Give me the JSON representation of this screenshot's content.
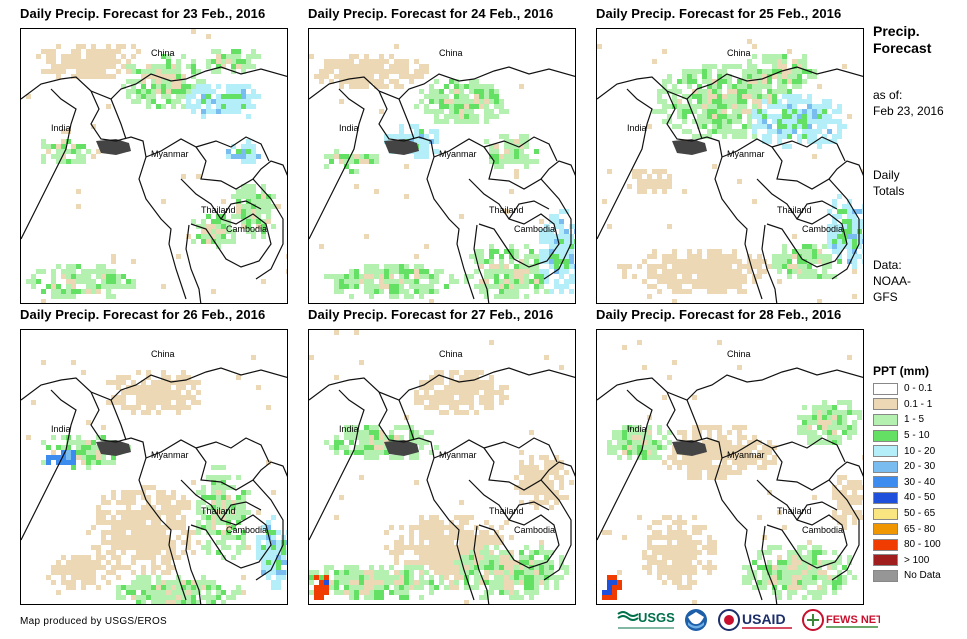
{
  "panels": [
    {
      "title": "Daily Precip. Forecast for 23 Feb., 2016"
    },
    {
      "title": "Daily Precip. Forecast for 24 Feb., 2016"
    },
    {
      "title": "Daily Precip. Forecast for 25 Feb., 2016"
    },
    {
      "title": "Daily Precip. Forecast for 26 Feb., 2016"
    },
    {
      "title": "Daily Precip. Forecast for 27 Feb., 2016"
    },
    {
      "title": "Daily Precip. Forecast for 28 Feb., 2016"
    }
  ],
  "map_labels": {
    "china": "China",
    "india": "India",
    "myanmar": "Myanmar",
    "thailand": "Thailand",
    "cambodia": "Cambodia"
  },
  "side": {
    "title": "Precip.\nForecast",
    "asof_label": "as of:",
    "asof_date": "Feb 23, 2016",
    "period": "Daily\nTotals",
    "data_source": "Data:\nNOAA-\nGFS"
  },
  "legend": {
    "title": "PPT (mm)",
    "items": [
      {
        "label": "0 - 0.1",
        "color": "#ffffff"
      },
      {
        "label": "0.1 - 1",
        "color": "#ecd8b4"
      },
      {
        "label": "1 - 5",
        "color": "#b4f0b0"
      },
      {
        "label": "5 - 10",
        "color": "#64e164"
      },
      {
        "label": "10 - 20",
        "color": "#b4eef8"
      },
      {
        "label": "20 - 30",
        "color": "#78bcf0"
      },
      {
        "label": "30 - 40",
        "color": "#3c8cf0"
      },
      {
        "label": "40 - 50",
        "color": "#1e50dc"
      },
      {
        "label": "50 - 65",
        "color": "#fae680"
      },
      {
        "label": "65 - 80",
        "color": "#f09600"
      },
      {
        "label": "80 - 100",
        "color": "#f03c00"
      },
      {
        "label": "> 100",
        "color": "#a01e1e"
      },
      {
        "label": "No Data",
        "color": "#969696"
      }
    ]
  },
  "credit": "Map produced by USGS/EROS",
  "logos": {
    "usgs": "USGS",
    "usaid": "USAID",
    "fewsnet": "FEWS NET"
  }
}
